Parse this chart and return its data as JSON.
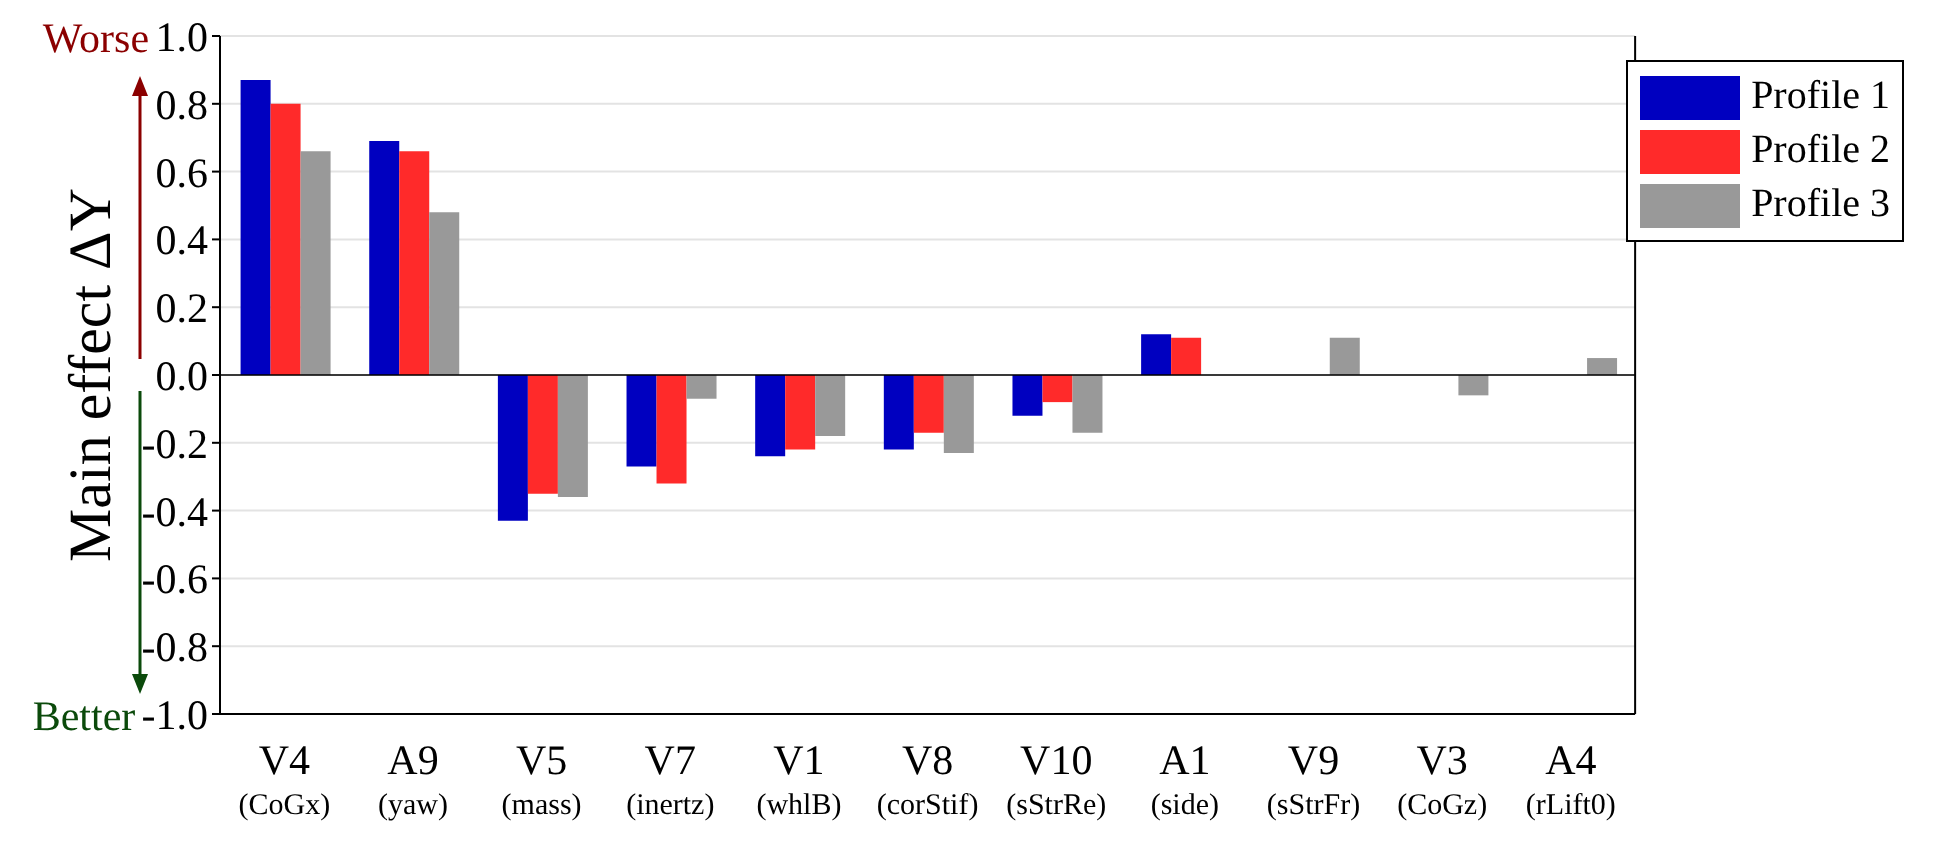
{
  "chart_data": {
    "type": "bar",
    "ylabel": "Main effect ΔY",
    "categories": [
      "V4\n(CoGx)",
      "A9\n(yaw)",
      "V5\n(mass)",
      "V7\n(inertz)",
      "V1\n(whlB)",
      "V8\n(corStif)",
      "V10\n(sStrRe)",
      "A1\n(side)",
      "V9\n(sStrFr)",
      "V3\n(CoGz)",
      "A4\n(rLift0)"
    ],
    "series": [
      {
        "name": "Profile 1",
        "color": "#0000c0",
        "values": [
          0.87,
          0.69,
          -0.43,
          -0.27,
          -0.24,
          -0.22,
          -0.12,
          0.12,
          null,
          null,
          null
        ]
      },
      {
        "name": "Profile 2",
        "color": "#ff2a2a",
        "values": [
          0.8,
          0.66,
          -0.35,
          -0.32,
          -0.22,
          -0.17,
          -0.08,
          0.11,
          null,
          null,
          null
        ]
      },
      {
        "name": "Profile 3",
        "color": "#999999",
        "values": [
          0.66,
          0.48,
          -0.36,
          -0.07,
          -0.18,
          -0.23,
          -0.17,
          null,
          0.11,
          -0.06,
          0.05
        ]
      }
    ],
    "ylim": [
      -1,
      1
    ],
    "yticks": [
      {
        "value": -1,
        "label": "-1.0"
      },
      {
        "value": -0.8,
        "label": "-0.8"
      },
      {
        "value": -0.6,
        "label": "-0.6"
      },
      {
        "value": -0.4,
        "label": "-0.4"
      },
      {
        "value": -0.2,
        "label": "-0.2"
      },
      {
        "value": 0,
        "label": "0.0"
      },
      {
        "value": 0.2,
        "label": "0.2"
      },
      {
        "value": 0.4,
        "label": "0.4"
      },
      {
        "value": 0.6,
        "label": "0.6"
      },
      {
        "value": 0.8,
        "label": "0.8"
      },
      {
        "value": 1,
        "label": "1.0"
      }
    ],
    "annotations": [
      "Worse",
      "Better"
    ],
    "grid": "y",
    "legend": "top right"
  }
}
